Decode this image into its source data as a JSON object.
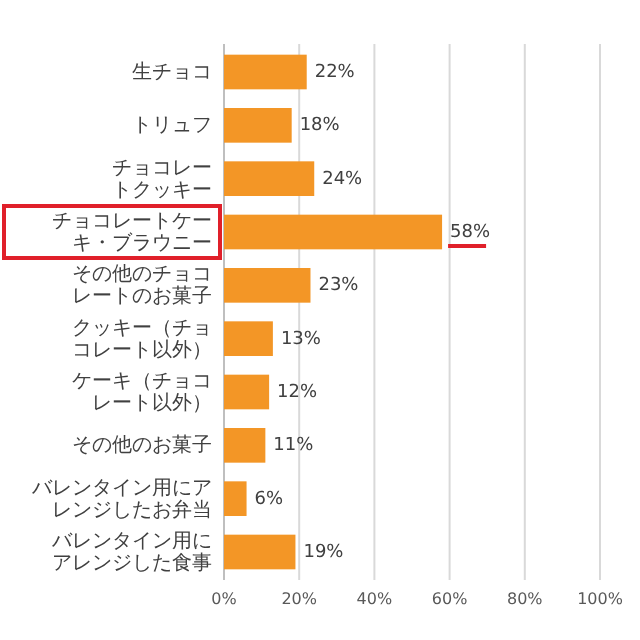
{
  "chart_data": {
    "type": "bar",
    "orientation": "horizontal",
    "categories": [
      "生チョコ",
      "トリュフ",
      "チョコレートクッキー",
      "チョコレートケーキ・ブラウニー",
      "その他のチョコレートのお菓子",
      "クッキー（チョコレート以外）",
      "ケーキ（チョコレート以外）",
      "その他のお菓子",
      "バレンタイン用にアレンジしたお弁当",
      "バレンタイン用にアレンジした食事"
    ],
    "values": [
      22,
      18,
      24,
      58,
      23,
      13,
      12,
      11,
      6,
      19
    ],
    "value_labels": [
      "22%",
      "18%",
      "24%",
      "58%",
      "23%",
      "13%",
      "12%",
      "11%",
      "6%",
      "19%"
    ],
    "color": "#f39626",
    "xlim": [
      0,
      100
    ],
    "xticks": [
      {
        "value": 0,
        "label": "0%"
      },
      {
        "value": 20,
        "label": "20%"
      },
      {
        "value": 40,
        "label": "40%"
      },
      {
        "value": 60,
        "label": "60%"
      },
      {
        "value": 80,
        "label": "80%"
      },
      {
        "value": 100,
        "label": "100%"
      }
    ],
    "grid": "x"
  }
}
